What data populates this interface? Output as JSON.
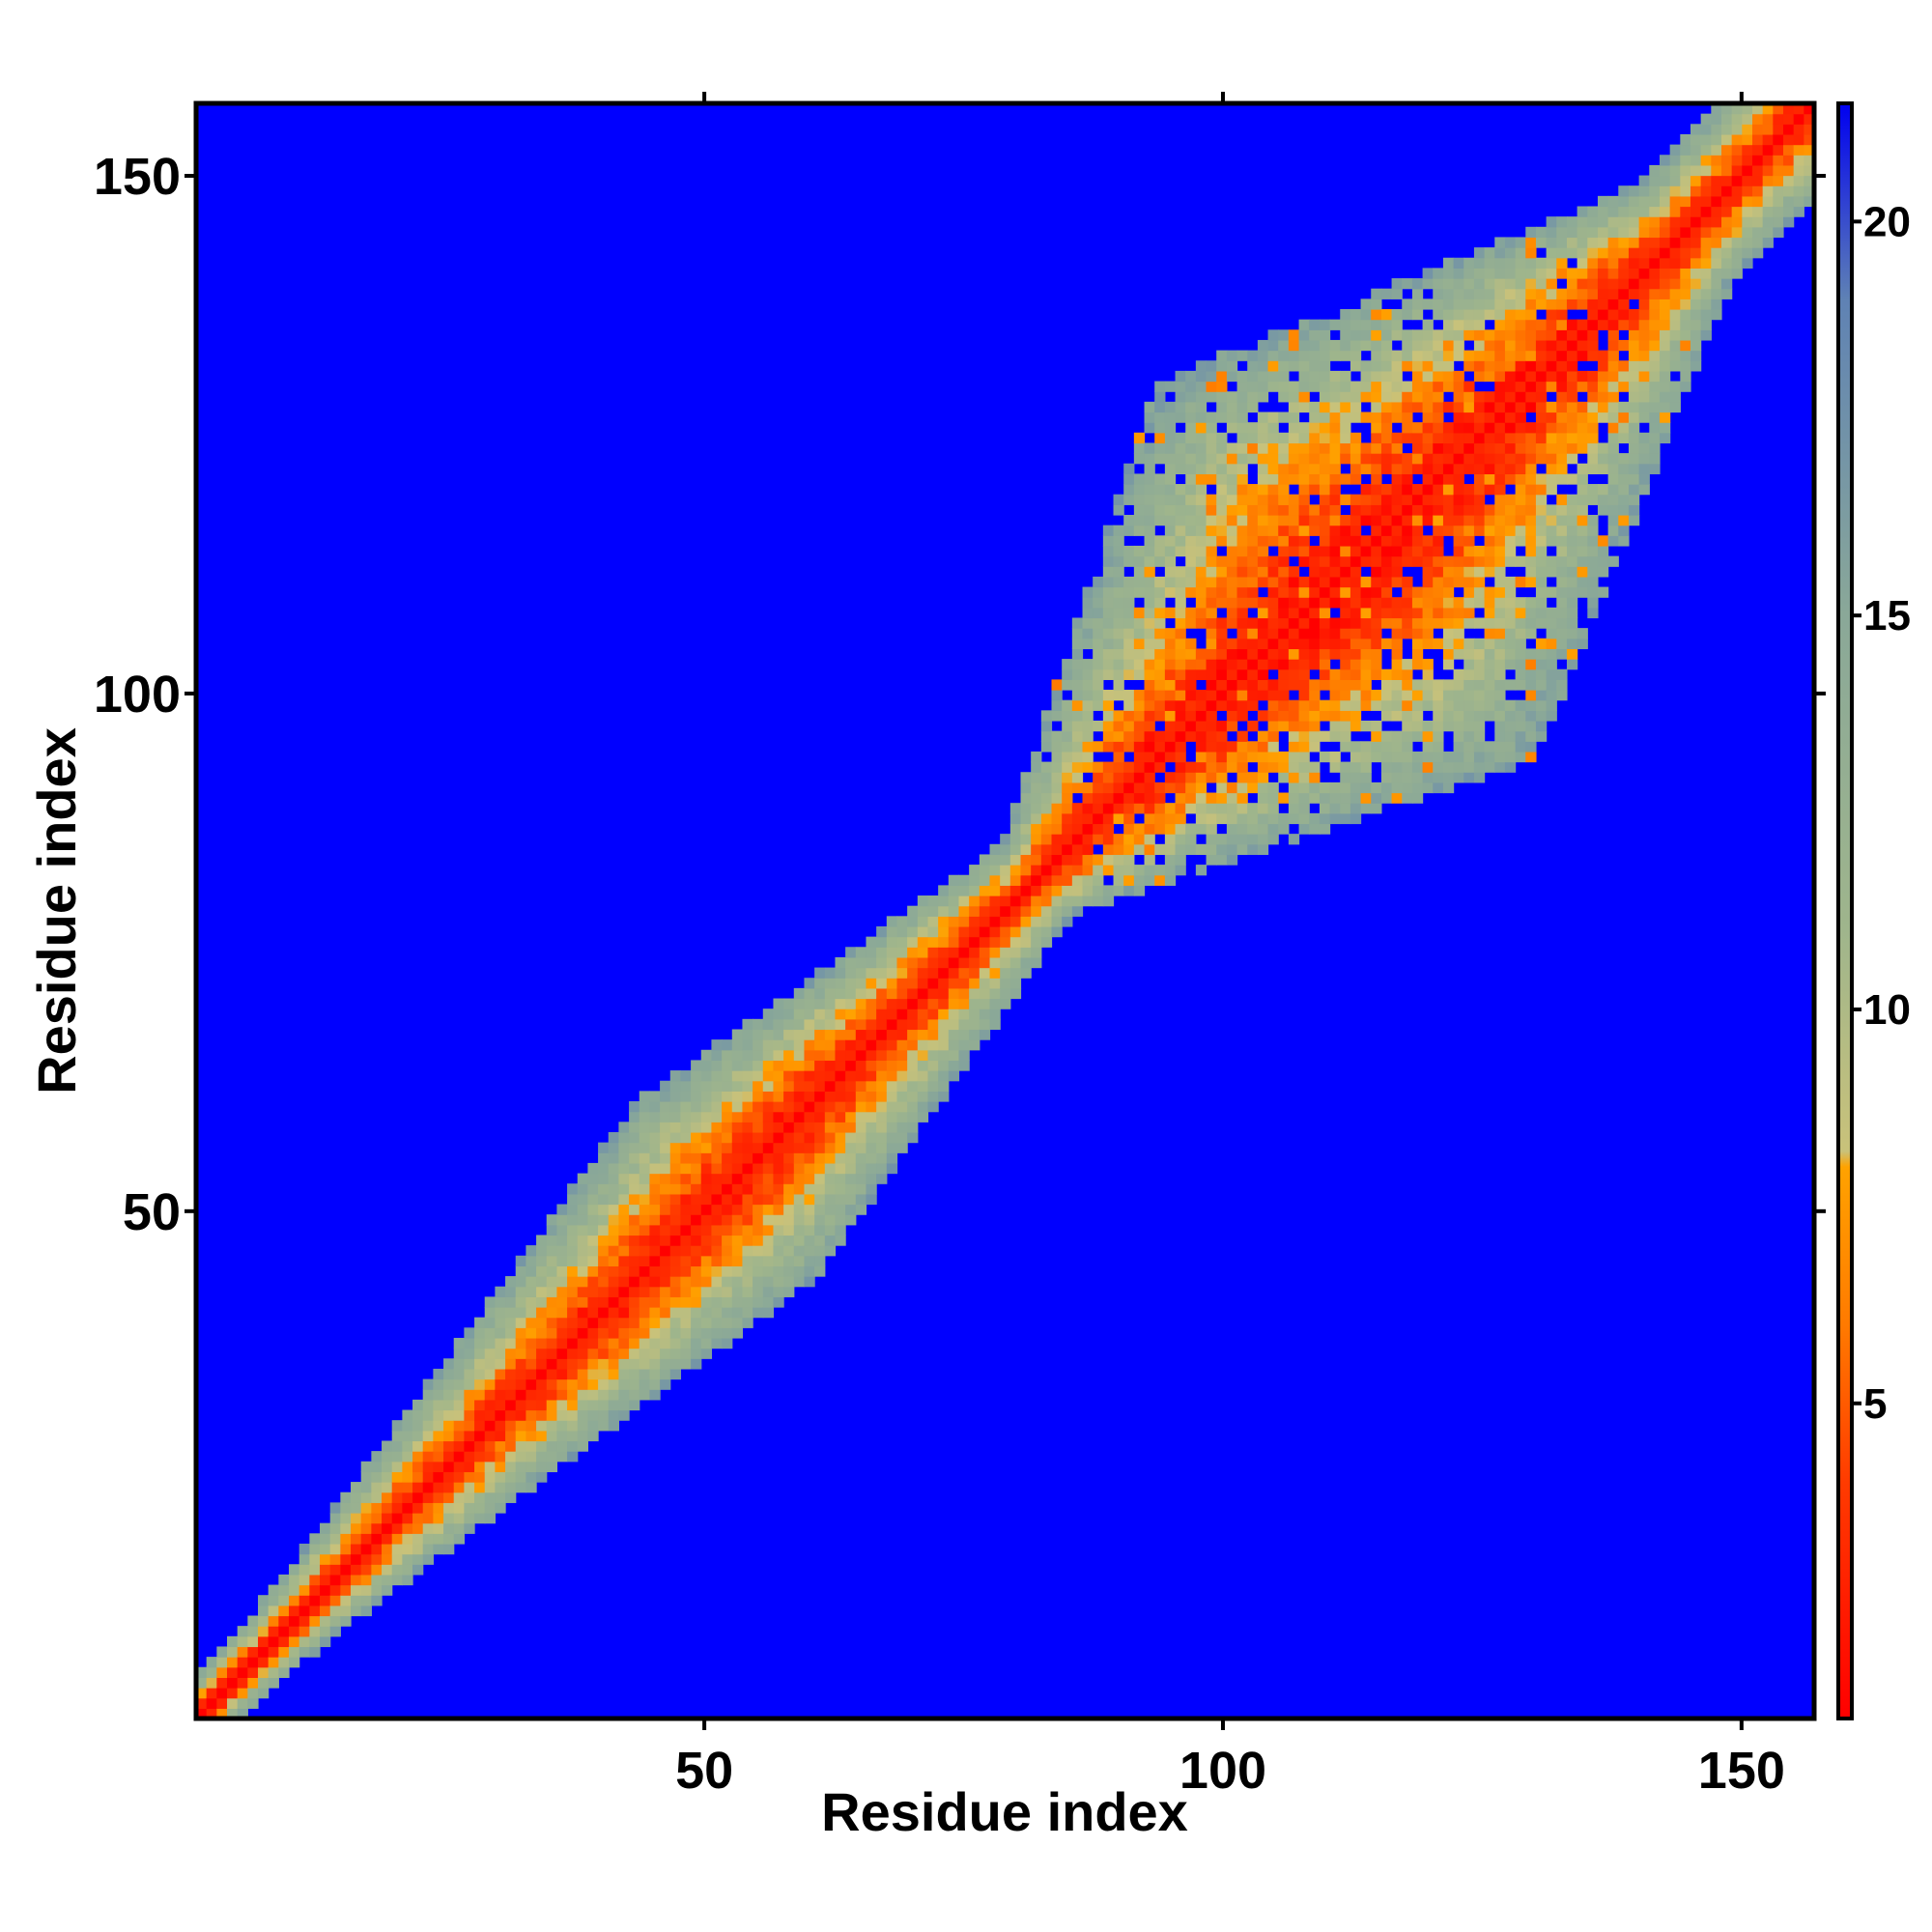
{
  "chart_data": {
    "type": "heatmap",
    "xlabel": "Residue index",
    "ylabel": "Residue index",
    "xlim": [
      1,
      157
    ],
    "ylim": [
      1,
      157
    ],
    "x_ticks": [
      50,
      100,
      150
    ],
    "y_ticks": [
      50,
      100,
      150
    ],
    "x_tick_labels": [
      "50",
      "100",
      "150"
    ],
    "y_tick_labels": [
      "50",
      "100",
      "150"
    ],
    "grid": false,
    "colorbar": {
      "position": "right",
      "range": [
        1,
        21.5
      ],
      "ticks": [
        5,
        10,
        15,
        20
      ],
      "tick_labels": [
        "5",
        "10",
        "15",
        "20"
      ],
      "stops": [
        {
          "value": 1,
          "color": "#ff0000"
        },
        {
          "value": 4,
          "color": "#ff3b00"
        },
        {
          "value": 6,
          "color": "#ff7a00"
        },
        {
          "value": 8,
          "color": "#ffa200"
        },
        {
          "value": 8.2,
          "color": "#c9c27a"
        },
        {
          "value": 11,
          "color": "#9fb58c"
        },
        {
          "value": 15,
          "color": "#8aa898"
        },
        {
          "value": 19,
          "color": "#5f82b4"
        },
        {
          "value": 21.5,
          "color": "#0000f0"
        }
      ]
    },
    "background_color": "#0000ff",
    "description_of_values": "Inter-residue distance-like map; values near 1 along the diagonal, increasing away from it, saturating at about 21 far from the diagonal.",
    "regions": [
      {
        "center": [
          8,
          8
        ],
        "diag_halfwidth": 4
      },
      {
        "center": [
          25,
          25
        ],
        "diag_halfwidth": 8
      },
      {
        "center": [
          52,
          52
        ],
        "diag_halfwidth": 15
      },
      {
        "center": [
          82,
          82
        ],
        "diag_halfwidth": 6
      },
      {
        "center": [
          112,
          112
        ],
        "diag_halfwidth": 32
      },
      {
        "center": [
          145,
          145
        ],
        "diag_halfwidth": 8
      }
    ]
  }
}
